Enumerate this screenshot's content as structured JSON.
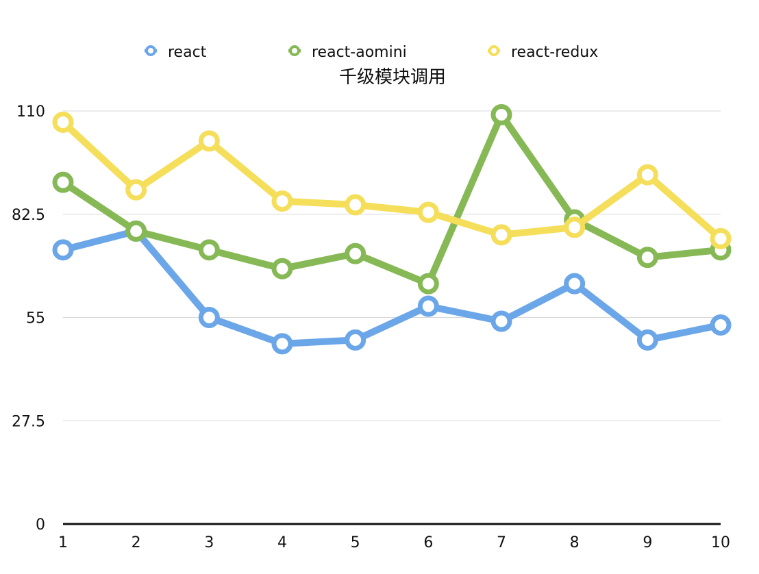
{
  "chart_data": {
    "type": "line",
    "title": "千级模块调用",
    "xlabel": "",
    "ylabel": "",
    "x": [
      1,
      2,
      3,
      4,
      5,
      6,
      7,
      8,
      9,
      10
    ],
    "x_tick_labels": [
      "1",
      "2",
      "3",
      "4",
      "5",
      "6",
      "7",
      "8",
      "9",
      "10"
    ],
    "y_ticks": [
      0,
      27.5,
      55,
      82.5,
      110
    ],
    "y_tick_labels": [
      "0",
      "27.5",
      "55",
      "82.5",
      "110"
    ],
    "ylim": [
      0,
      110
    ],
    "grid": true,
    "legend_position": "top",
    "series": [
      {
        "name": "react",
        "color": "#6aa6e8",
        "values": [
          73,
          78,
          55,
          48,
          49,
          58,
          54,
          64,
          49,
          53
        ]
      },
      {
        "name": "react-aomini",
        "color": "#86b955",
        "values": [
          91,
          78,
          73,
          68,
          72,
          64,
          109,
          81,
          71,
          73
        ]
      },
      {
        "name": "react-redux",
        "color": "#f5de5a",
        "values": [
          107,
          89,
          102,
          86,
          85,
          83,
          77,
          79,
          93,
          76
        ]
      }
    ]
  }
}
